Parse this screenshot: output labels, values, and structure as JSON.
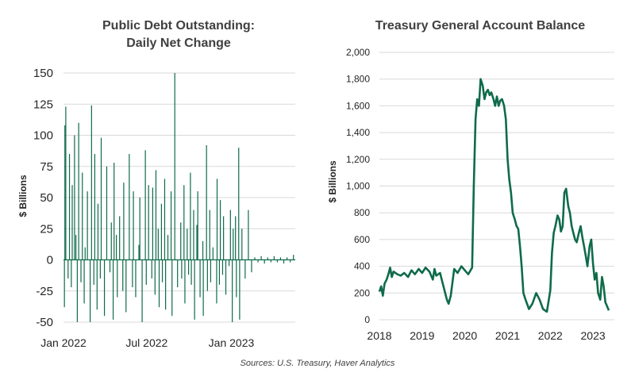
{
  "chart_data": [
    {
      "type": "bar",
      "title": "Public Debt Outstanding: Daily Net Change",
      "title_lines": [
        "Public Debt Outstanding:",
        "Daily Net Change"
      ],
      "ylabel": "$ Billions",
      "xlabel": "",
      "ylim": [
        -50,
        150
      ],
      "yticks": [
        150,
        125,
        100,
        75,
        50,
        25,
        0,
        -25,
        -50
      ],
      "xlim": [
        "2022-01-01",
        "2023-05-20"
      ],
      "xticks": [
        {
          "label": "Jan 2022",
          "date": "2022-01-01"
        },
        {
          "label": "Jul 2022",
          "date": "2022-07-01"
        },
        {
          "label": "Jan 2023",
          "date": "2023-01-01"
        }
      ],
      "grid": "horizontal",
      "color": "#0f6b4a",
      "series": [
        {
          "x": [
            "2022-01-03",
            "2022-01-04",
            "2022-01-06",
            "2022-01-11",
            "2022-01-14",
            "2022-01-18",
            "2022-01-20",
            "2022-01-25",
            "2022-01-28",
            "2022-01-31",
            "2022-02-03",
            "2022-02-08",
            "2022-02-11",
            "2022-02-15",
            "2022-02-17",
            "2022-02-22",
            "2022-02-28",
            "2022-03-03",
            "2022-03-08",
            "2022-03-10",
            "2022-03-15",
            "2022-03-17",
            "2022-03-22",
            "2022-03-24",
            "2022-03-31",
            "2022-04-05",
            "2022-04-12",
            "2022-04-15",
            "2022-04-19",
            "2022-04-21",
            "2022-04-26",
            "2022-04-28",
            "2022-05-03",
            "2022-05-10",
            "2022-05-12",
            "2022-05-17",
            "2022-05-24",
            "2022-05-31",
            "2022-06-02",
            "2022-06-07",
            "2022-06-14",
            "2022-06-16",
            "2022-06-21",
            "2022-06-28",
            "2022-06-30",
            "2022-07-05",
            "2022-07-12",
            "2022-07-14",
            "2022-07-19",
            "2022-07-21",
            "2022-07-26",
            "2022-07-28",
            "2022-08-02",
            "2022-08-04",
            "2022-08-09",
            "2022-08-11",
            "2022-08-16",
            "2022-08-23",
            "2022-08-25",
            "2022-08-31",
            "2022-09-06",
            "2022-09-13",
            "2022-09-15",
            "2022-09-20",
            "2022-09-22",
            "2022-09-27",
            "2022-09-30",
            "2022-10-04",
            "2022-10-06",
            "2022-10-11",
            "2022-10-13",
            "2022-10-18",
            "2022-10-20",
            "2022-10-25",
            "2022-10-31",
            "2022-11-01",
            "2022-11-08",
            "2022-11-10",
            "2022-11-15",
            "2022-11-17",
            "2022-11-22",
            "2022-11-30",
            "2022-12-01",
            "2022-12-06",
            "2022-12-08",
            "2022-12-13",
            "2022-12-15",
            "2022-12-20",
            "2022-12-27",
            "2022-12-30",
            "2023-01-03",
            "2023-01-05",
            "2023-01-10",
            "2023-01-12",
            "2023-01-17",
            "2023-01-19",
            "2023-01-24",
            "2023-01-31",
            "2023-02-07",
            "2023-02-14",
            "2023-02-21",
            "2023-02-28",
            "2023-03-07",
            "2023-03-14",
            "2023-03-21",
            "2023-03-28",
            "2023-04-04",
            "2023-04-11",
            "2023-04-18",
            "2023-04-25",
            "2023-05-02",
            "2023-05-09",
            "2023-05-16"
          ],
          "values": [
            -38,
            108,
            123,
            -15,
            85,
            -22,
            60,
            100,
            20,
            -50,
            110,
            -18,
            70,
            -35,
            10,
            55,
            -50,
            124,
            -20,
            85,
            -40,
            45,
            -15,
            98,
            -45,
            75,
            -10,
            30,
            -48,
            78,
            20,
            -30,
            35,
            -25,
            62,
            -42,
            85,
            -22,
            55,
            -30,
            12,
            50,
            -50,
            88,
            -20,
            60,
            -15,
            58,
            -28,
            72,
            25,
            -38,
            45,
            -18,
            65,
            -40,
            20,
            55,
            -45,
            150,
            -22,
            30,
            -15,
            60,
            -35,
            25,
            -12,
            70,
            -20,
            40,
            -48,
            28,
            55,
            -30,
            15,
            -45,
            92,
            -25,
            40,
            -18,
            10,
            -35,
            65,
            -20,
            48,
            -12,
            35,
            -28,
            -5,
            40,
            -50,
            25,
            35,
            -30,
            90,
            -48,
            25,
            -15,
            40,
            -10,
            2,
            -2,
            3,
            -3,
            2,
            -2,
            3,
            -2,
            2,
            -3,
            2,
            -2,
            4
          ]
        }
      ]
    },
    {
      "type": "line",
      "title": "Treasury General Account Balance",
      "ylabel": "$ Billions",
      "xlabel": "",
      "ylim": [
        0,
        2000
      ],
      "yticks": [
        "2,000",
        "1,800",
        "1,600",
        "1,400",
        "1,200",
        "1,000",
        "800",
        "600",
        "400",
        "200",
        "0"
      ],
      "xlim": [
        2018,
        2023.5
      ],
      "xticks": [
        "2018",
        "2019",
        "2020",
        "2021",
        "2022",
        "2023"
      ],
      "grid": "horizontal",
      "color": "#0f6b4a",
      "series": [
        {
          "x": [
            2018.0,
            2018.04,
            2018.08,
            2018.12,
            2018.17,
            2018.21,
            2018.25,
            2018.29,
            2018.33,
            2018.42,
            2018.5,
            2018.58,
            2018.67,
            2018.75,
            2018.83,
            2018.92,
            2019.0,
            2019.08,
            2019.17,
            2019.25,
            2019.29,
            2019.33,
            2019.42,
            2019.5,
            2019.58,
            2019.62,
            2019.67,
            2019.75,
            2019.83,
            2019.92,
            2020.0,
            2020.08,
            2020.17,
            2020.21,
            2020.25,
            2020.29,
            2020.33,
            2020.37,
            2020.42,
            2020.46,
            2020.5,
            2020.54,
            2020.58,
            2020.62,
            2020.67,
            2020.71,
            2020.75,
            2020.79,
            2020.83,
            2020.87,
            2020.92,
            2020.96,
            2021.0,
            2021.04,
            2021.08,
            2021.12,
            2021.17,
            2021.21,
            2021.25,
            2021.29,
            2021.33,
            2021.37,
            2021.42,
            2021.5,
            2021.58,
            2021.67,
            2021.75,
            2021.83,
            2021.92,
            2022.0,
            2022.04,
            2022.08,
            2022.12,
            2022.17,
            2022.21,
            2022.25,
            2022.29,
            2022.33,
            2022.37,
            2022.42,
            2022.46,
            2022.5,
            2022.54,
            2022.58,
            2022.62,
            2022.67,
            2022.71,
            2022.75,
            2022.79,
            2022.83,
            2022.87,
            2022.92,
            2022.96,
            2023.0,
            2023.04,
            2023.08,
            2023.12,
            2023.17,
            2023.21,
            2023.25,
            2023.29,
            2023.33,
            2023.37
          ],
          "values": [
            210,
            250,
            180,
            270,
            300,
            340,
            390,
            320,
            360,
            340,
            330,
            350,
            320,
            370,
            340,
            380,
            350,
            390,
            360,
            300,
            380,
            330,
            350,
            250,
            150,
            120,
            180,
            380,
            350,
            400,
            370,
            340,
            390,
            1000,
            1500,
            1650,
            1600,
            1800,
            1750,
            1650,
            1700,
            1720,
            1680,
            1700,
            1650,
            1600,
            1670,
            1600,
            1640,
            1650,
            1600,
            1500,
            1200,
            1050,
            950,
            800,
            750,
            700,
            680,
            550,
            400,
            200,
            150,
            80,
            120,
            200,
            150,
            80,
            60,
            220,
            500,
            650,
            700,
            780,
            750,
            660,
            700,
            950,
            980,
            850,
            800,
            700,
            650,
            600,
            580,
            650,
            700,
            620,
            550,
            480,
            400,
            550,
            600,
            420,
            300,
            350,
            200,
            150,
            320,
            250,
            130,
            100,
            70
          ]
        }
      ]
    }
  ],
  "titles": {
    "left_line1": "Public Debt Outstanding:",
    "left_line2": "Daily Net Change",
    "right": "Treasury General Account Balance"
  },
  "ylabels": {
    "left": "$ Billions",
    "right": "$ Billions"
  },
  "source": "Sources: U.S. Treasury, Haver Analytics"
}
